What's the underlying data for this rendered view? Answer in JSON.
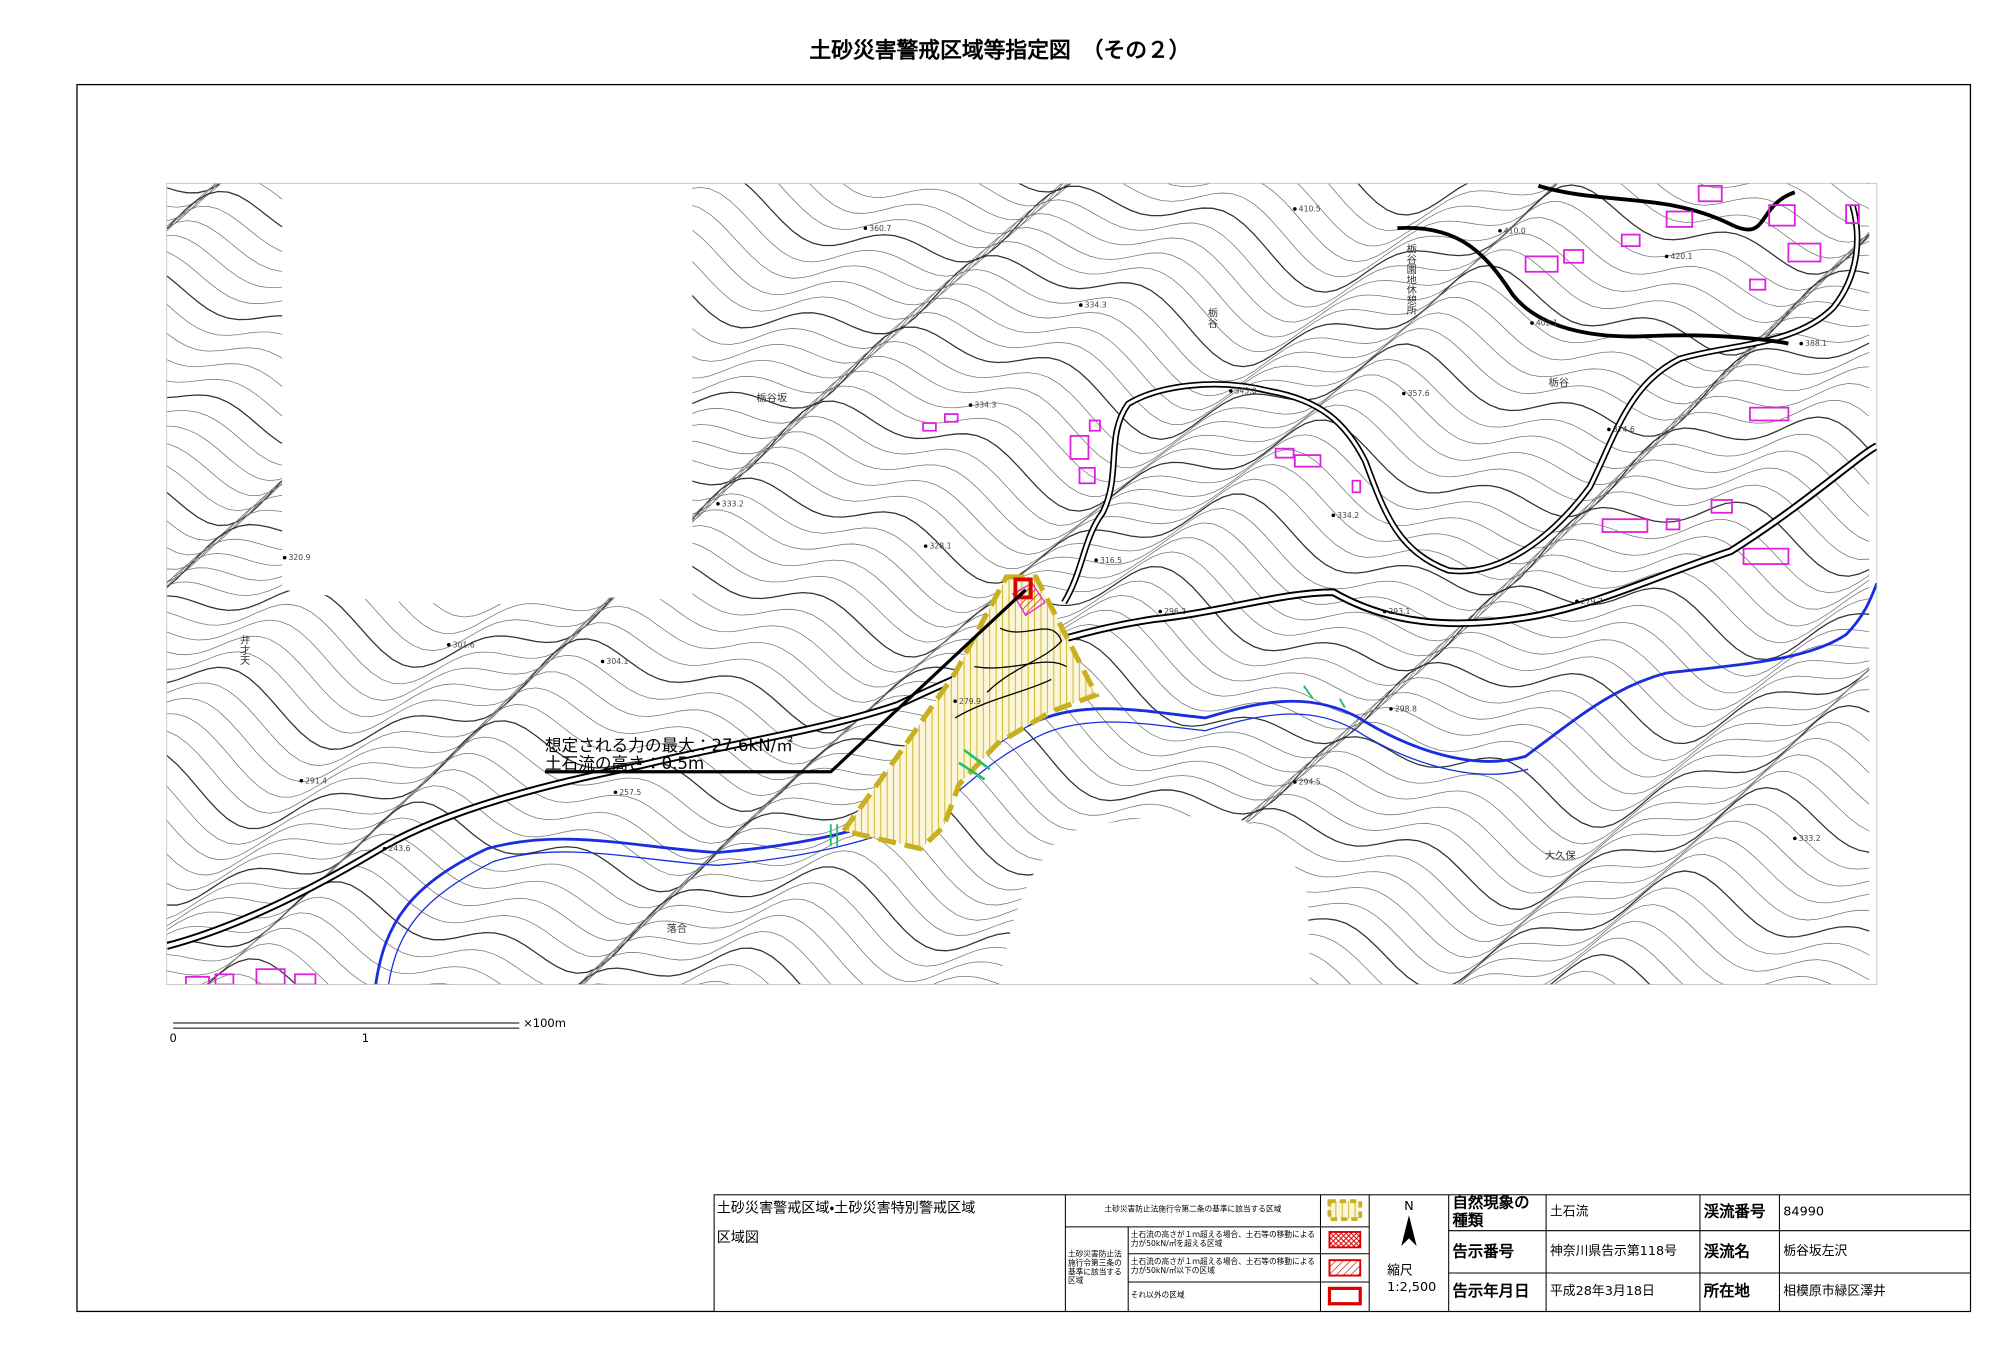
{
  "title": "土砂災害警戒区域等指定図　（その２）",
  "map": {
    "elevations": [
      "360.7",
      "334.3",
      "334.3",
      "333.2",
      "328.1",
      "320.9",
      "316.5",
      "301.6",
      "304.1",
      "291.4",
      "257.5",
      "243.6",
      "296.2",
      "293.1",
      "279.7",
      "298.8",
      "294.5",
      "333.2",
      "410.5",
      "410.0",
      "420.1",
      "402.1",
      "388.1",
      "345.0",
      "357.6",
      "374.6",
      "334.2",
      "279.9"
    ],
    "place_names": [
      "栃谷坂",
      "栃谷",
      "栃谷",
      "弁才天",
      "落合",
      "大久保",
      "栃谷園地休憩所"
    ],
    "annotations": [
      "想定される力の最大：27.6kN/㎡",
      "土石流の高さ：0.5m"
    ]
  },
  "scale_bar": {
    "labels": [
      "0",
      "1",
      "×100m"
    ]
  },
  "legend": {
    "title": "土砂災害警戒区域・土砂災害特別警戒区域",
    "subtitle": "区域図",
    "items": [
      "土砂災害防止法施行令第二条の基準に該当する区域",
      "土石流の高さが１ｍ超える場合、土石等の移動による力が50kN/㎡を超える区域",
      "土石流の高さが１ｍ超える場合、土石等の移動による力が50kN/㎡以下の区域",
      "それ以外の区域"
    ],
    "group_label": "土砂災害防止法施行令第三条の基準に該当する区域",
    "north": "N",
    "scale_label": "縮尺",
    "scale": "1:2,500"
  },
  "info": {
    "rows": [
      [
        "自然現象の種類",
        "土石流",
        "渓流番号",
        "84990"
      ],
      [
        "告示番号",
        "神奈川県告示第118号",
        "渓流名",
        "栃谷坂左沢"
      ],
      [
        "告示年月日",
        "平成28年3月18日",
        "所在地",
        "相模原市緑区澤井"
      ]
    ]
  }
}
